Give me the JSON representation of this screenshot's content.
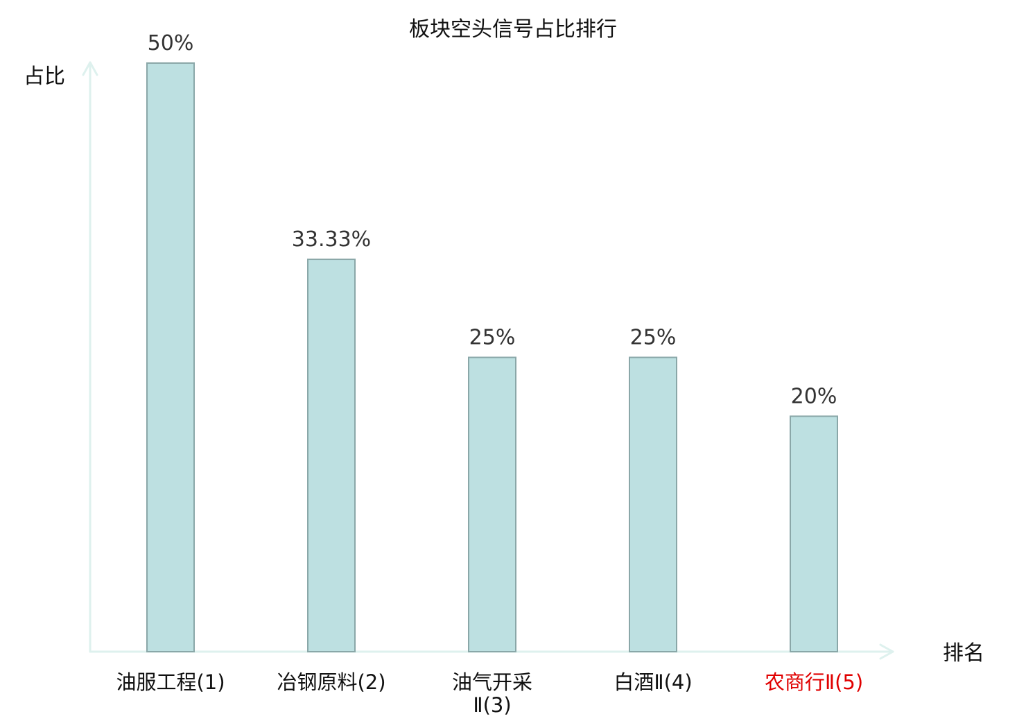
{
  "chart_data": {
    "type": "bar",
    "title": "板块空头信号占比排行",
    "ylabel": "占比",
    "xlabel": "排名",
    "categories": [
      [
        "油服工程(1)"
      ],
      [
        "冶钢原料(2)"
      ],
      [
        "油气开采",
        "Ⅱ(3)"
      ],
      [
        "白酒Ⅱ(4)"
      ],
      [
        "农商行Ⅱ(5)"
      ]
    ],
    "values": [
      50,
      33.33,
      25,
      25,
      20
    ],
    "value_labels": [
      "50%",
      "33.33%",
      "25%",
      "25%",
      "20%"
    ],
    "highlight_index": 4,
    "ylim": [
      0,
      50
    ],
    "grid": false,
    "legend": "none",
    "colors": {
      "bar_fill": "#bde0e1",
      "bar_stroke": "#8aa7a8",
      "axis": "#def1ee",
      "category_text": "#111111",
      "highlight_text": "#e00000"
    }
  }
}
